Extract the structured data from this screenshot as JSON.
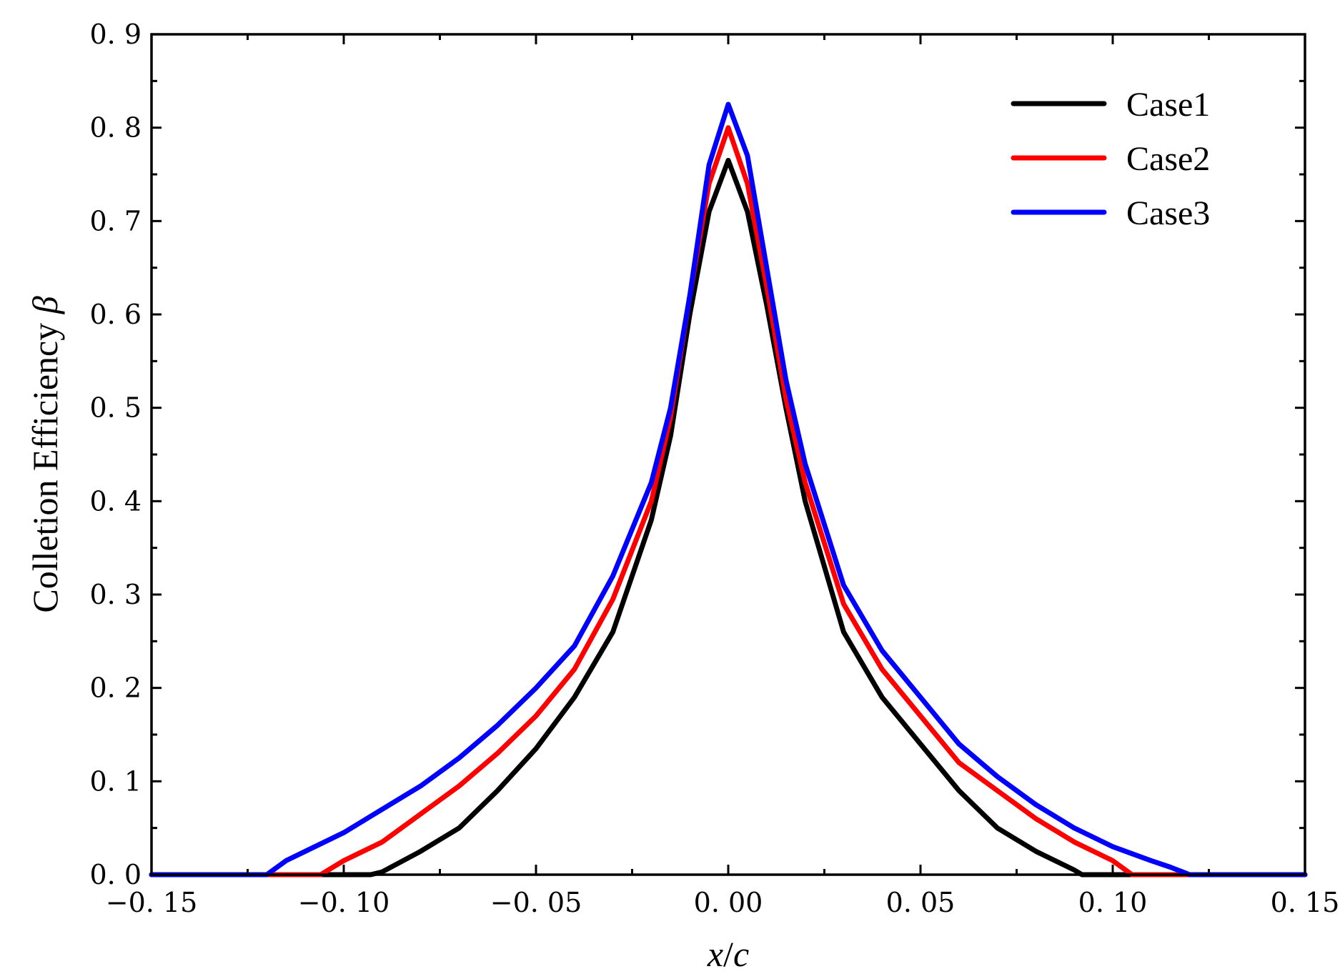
{
  "chart_data": {
    "type": "line",
    "xlabel": "x/c",
    "ylabel": "Colletion Efficiency β",
    "ylabel_parts": {
      "text": "Colletion Efficiency ",
      "symbol": "β"
    },
    "xlabel_parts": {
      "x": "x",
      "slash": "/",
      "c": "c"
    },
    "xlim": [
      -0.15,
      0.15
    ],
    "ylim": [
      0.0,
      0.9
    ],
    "x_ticks": [
      "−0. 15",
      "−0. 10",
      "−0. 05",
      "0. 00",
      "0. 05",
      "0. 10",
      "0. 15"
    ],
    "x_tick_values": [
      -0.15,
      -0.1,
      -0.05,
      0.0,
      0.05,
      0.1,
      0.15
    ],
    "y_ticks": [
      "0. 0",
      "0. 1",
      "0. 2",
      "0. 3",
      "0. 4",
      "0. 5",
      "0. 6",
      "0. 7",
      "0. 8",
      "0. 9"
    ],
    "y_tick_values": [
      0.0,
      0.1,
      0.2,
      0.3,
      0.4,
      0.5,
      0.6,
      0.7,
      0.8,
      0.9
    ],
    "grid": false,
    "legend_position": "top-right",
    "series": [
      {
        "name": "Case1",
        "color": "#000000",
        "x": [
          -0.15,
          -0.093,
          -0.09,
          -0.08,
          -0.07,
          -0.06,
          -0.05,
          -0.04,
          -0.03,
          -0.02,
          -0.015,
          -0.01,
          -0.005,
          0.0,
          0.005,
          0.01,
          0.015,
          0.02,
          0.03,
          0.04,
          0.05,
          0.06,
          0.07,
          0.08,
          0.09,
          0.092,
          0.15
        ],
        "y": [
          0.0,
          0.0,
          0.003,
          0.025,
          0.05,
          0.09,
          0.135,
          0.19,
          0.26,
          0.38,
          0.47,
          0.6,
          0.71,
          0.765,
          0.71,
          0.61,
          0.5,
          0.4,
          0.26,
          0.19,
          0.14,
          0.09,
          0.05,
          0.025,
          0.005,
          0.0,
          0.0
        ]
      },
      {
        "name": "Case2",
        "color": "#ff0000",
        "x": [
          -0.15,
          -0.106,
          -0.1,
          -0.09,
          -0.08,
          -0.07,
          -0.06,
          -0.05,
          -0.04,
          -0.03,
          -0.02,
          -0.015,
          -0.01,
          -0.005,
          0.0,
          0.005,
          0.01,
          0.015,
          0.02,
          0.03,
          0.04,
          0.05,
          0.06,
          0.07,
          0.08,
          0.09,
          0.1,
          0.105,
          0.15
        ],
        "y": [
          0.0,
          0.0,
          0.015,
          0.035,
          0.065,
          0.095,
          0.13,
          0.17,
          0.22,
          0.295,
          0.4,
          0.49,
          0.62,
          0.74,
          0.8,
          0.74,
          0.63,
          0.51,
          0.42,
          0.29,
          0.22,
          0.17,
          0.12,
          0.09,
          0.06,
          0.035,
          0.015,
          0.0,
          0.0
        ]
      },
      {
        "name": "Case3",
        "color": "#0000ff",
        "x": [
          -0.15,
          -0.12,
          -0.115,
          -0.11,
          -0.1,
          -0.09,
          -0.08,
          -0.07,
          -0.06,
          -0.05,
          -0.04,
          -0.03,
          -0.02,
          -0.015,
          -0.01,
          -0.005,
          0.0,
          0.005,
          0.01,
          0.015,
          0.02,
          0.03,
          0.04,
          0.05,
          0.06,
          0.07,
          0.08,
          0.09,
          0.1,
          0.11,
          0.115,
          0.12,
          0.15
        ],
        "y": [
          0.0,
          0.0,
          0.015,
          0.025,
          0.045,
          0.07,
          0.095,
          0.125,
          0.16,
          0.2,
          0.245,
          0.32,
          0.42,
          0.5,
          0.62,
          0.76,
          0.825,
          0.77,
          0.65,
          0.53,
          0.44,
          0.31,
          0.24,
          0.19,
          0.14,
          0.105,
          0.075,
          0.05,
          0.03,
          0.015,
          0.008,
          0.0,
          0.0
        ]
      }
    ]
  }
}
